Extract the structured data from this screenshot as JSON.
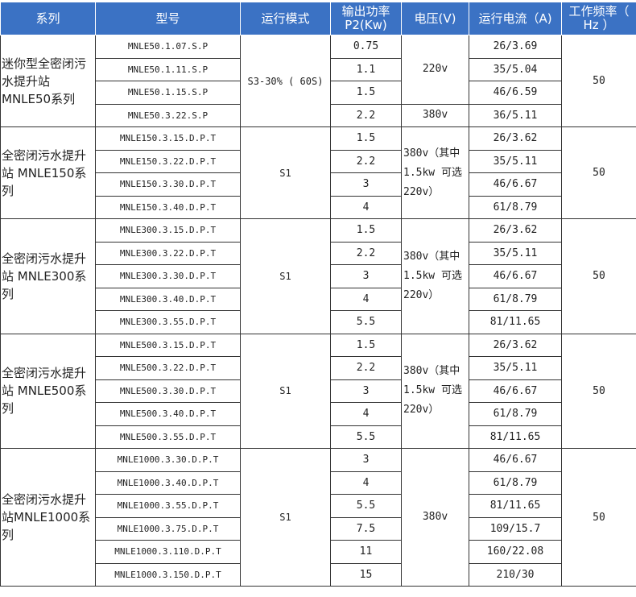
{
  "header": {
    "series": "系列",
    "model": "型号",
    "mode": "运行模式",
    "power": "输出功率P2(Kw)",
    "voltage": "电压(V)",
    "current": "运行电流（A)",
    "frequency": "工作频率（ Hz ）"
  },
  "colors": {
    "header_bg": "#3b72c4",
    "header_text": "#ffffff",
    "border": "#333333"
  },
  "groups": [
    {
      "series": "迷你型全密闭污水提升站MNLE50系列",
      "mode": "S3-30% ( 60S)",
      "frequency": "50",
      "voltage": [
        {
          "text": "220v",
          "span": 3
        },
        {
          "text": "380v",
          "span": 1
        }
      ],
      "rows": [
        {
          "model": "MNLE50.1.07.S.P",
          "power": "0.75",
          "current": "26/3.69"
        },
        {
          "model": "MNLE50.1.11.S.P",
          "power": "1.1",
          "current": "35/5.04"
        },
        {
          "model": "MNLE50.1.15.S.P",
          "power": "1.5",
          "current": "46/6.59"
        },
        {
          "model": "MNLE50.3.22.S.P",
          "power": "2.2",
          "current": "36/5.11"
        }
      ]
    },
    {
      "series": "全密闭污水提升站 MNLE150系列",
      "mode": "S1",
      "frequency": "50",
      "voltage": [
        {
          "text": "380v（其中 1.5kw 可选 220v）",
          "span": 4
        }
      ],
      "rows": [
        {
          "model": "MNLE150.3.15.D.P.T",
          "power": "1.5",
          "current": "26/3.62"
        },
        {
          "model": "MNLE150.3.22.D.P.T",
          "power": "2.2",
          "current": "35/5.11"
        },
        {
          "model": "MNLE150.3.30.D.P.T",
          "power": "3",
          "current": "46/6.67"
        },
        {
          "model": "MNLE150.3.40.D.P.T",
          "power": "4",
          "current": "61/8.79"
        }
      ]
    },
    {
      "series": "全密闭污水提升站 MNLE300系列",
      "mode": "S1",
      "frequency": "50",
      "voltage": [
        {
          "text": "380v（其中 1.5kw 可选 220v）",
          "span": 5
        }
      ],
      "rows": [
        {
          "model": "MNLE300.3.15.D.P.T",
          "power": "1.5",
          "current": "26/3.62"
        },
        {
          "model": "MNLE300.3.22.D.P.T",
          "power": "2.2",
          "current": "35/5.11"
        },
        {
          "model": "MNLE300.3.30.D.P.T",
          "power": "3",
          "current": "46/6.67"
        },
        {
          "model": "MNLE300.3.40.D.P.T",
          "power": "4",
          "current": "61/8.79"
        },
        {
          "model": "MNLE300.3.55.D.P.T",
          "power": "5.5",
          "current": "81/11.65"
        }
      ]
    },
    {
      "series": "全密闭污水提升站 MNLE500系列",
      "mode": "S1",
      "frequency": "50",
      "voltage": [
        {
          "text": "380v（其中 1.5kw 可选 220v）",
          "span": 5
        }
      ],
      "rows": [
        {
          "model": "MNLE500.3.15.D.P.T",
          "power": "1.5",
          "current": "26/3.62"
        },
        {
          "model": "MNLE500.3.22.D.P.T",
          "power": "2.2",
          "current": "35/5.11"
        },
        {
          "model": "MNLE500.3.30.D.P.T",
          "power": "3",
          "current": "46/6.67"
        },
        {
          "model": "MNLE500.3.40.D.P.T",
          "power": "4",
          "current": "61/8.79"
        },
        {
          "model": "MNLE500.3.55.D.P.T",
          "power": "5.5",
          "current": "81/11.65"
        }
      ]
    },
    {
      "series": "全密闭污水提升站MNLE1000系列",
      "mode": "S1",
      "frequency": "50",
      "voltage": [
        {
          "text": "380v",
          "span": 6
        }
      ],
      "rows": [
        {
          "model": "MNLE1000.3.30.D.P.T",
          "power": "3",
          "current": "46/6.67"
        },
        {
          "model": "MNLE1000.3.40.D.P.T",
          "power": "4",
          "current": "61/8.79"
        },
        {
          "model": "MNLE1000.3.55.D.P.T",
          "power": "5.5",
          "current": "81/11.65"
        },
        {
          "model": "MNLE1000.3.75.D.P.T",
          "power": "7.5",
          "current": "109/15.7"
        },
        {
          "model": "MNLE1000.3.110.D.P.T",
          "power": "11",
          "current": "160/22.08"
        },
        {
          "model": "MNLE1000.3.150.D.P.T",
          "power": "15",
          "current": "210/30"
        }
      ]
    }
  ]
}
